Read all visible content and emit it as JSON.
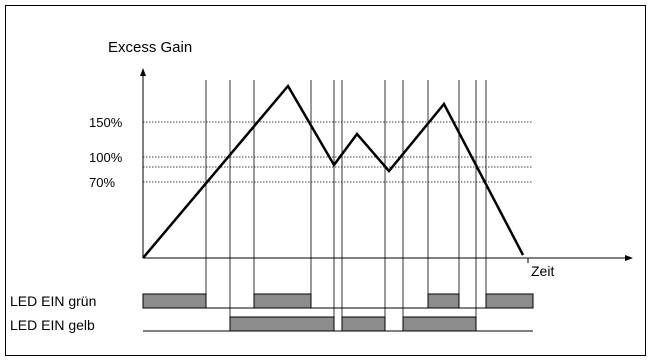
{
  "diagram": {
    "title": "Excess Gain",
    "x_axis_label": "Zeit",
    "levels": [
      {
        "label": "150%",
        "value": 150
      },
      {
        "label": "100%",
        "value": 100
      },
      {
        "label": "70%",
        "value": 70
      }
    ],
    "led_green": {
      "label": "LED EIN grün"
    },
    "led_yellow": {
      "label": "LED EIN gelb"
    }
  }
}
